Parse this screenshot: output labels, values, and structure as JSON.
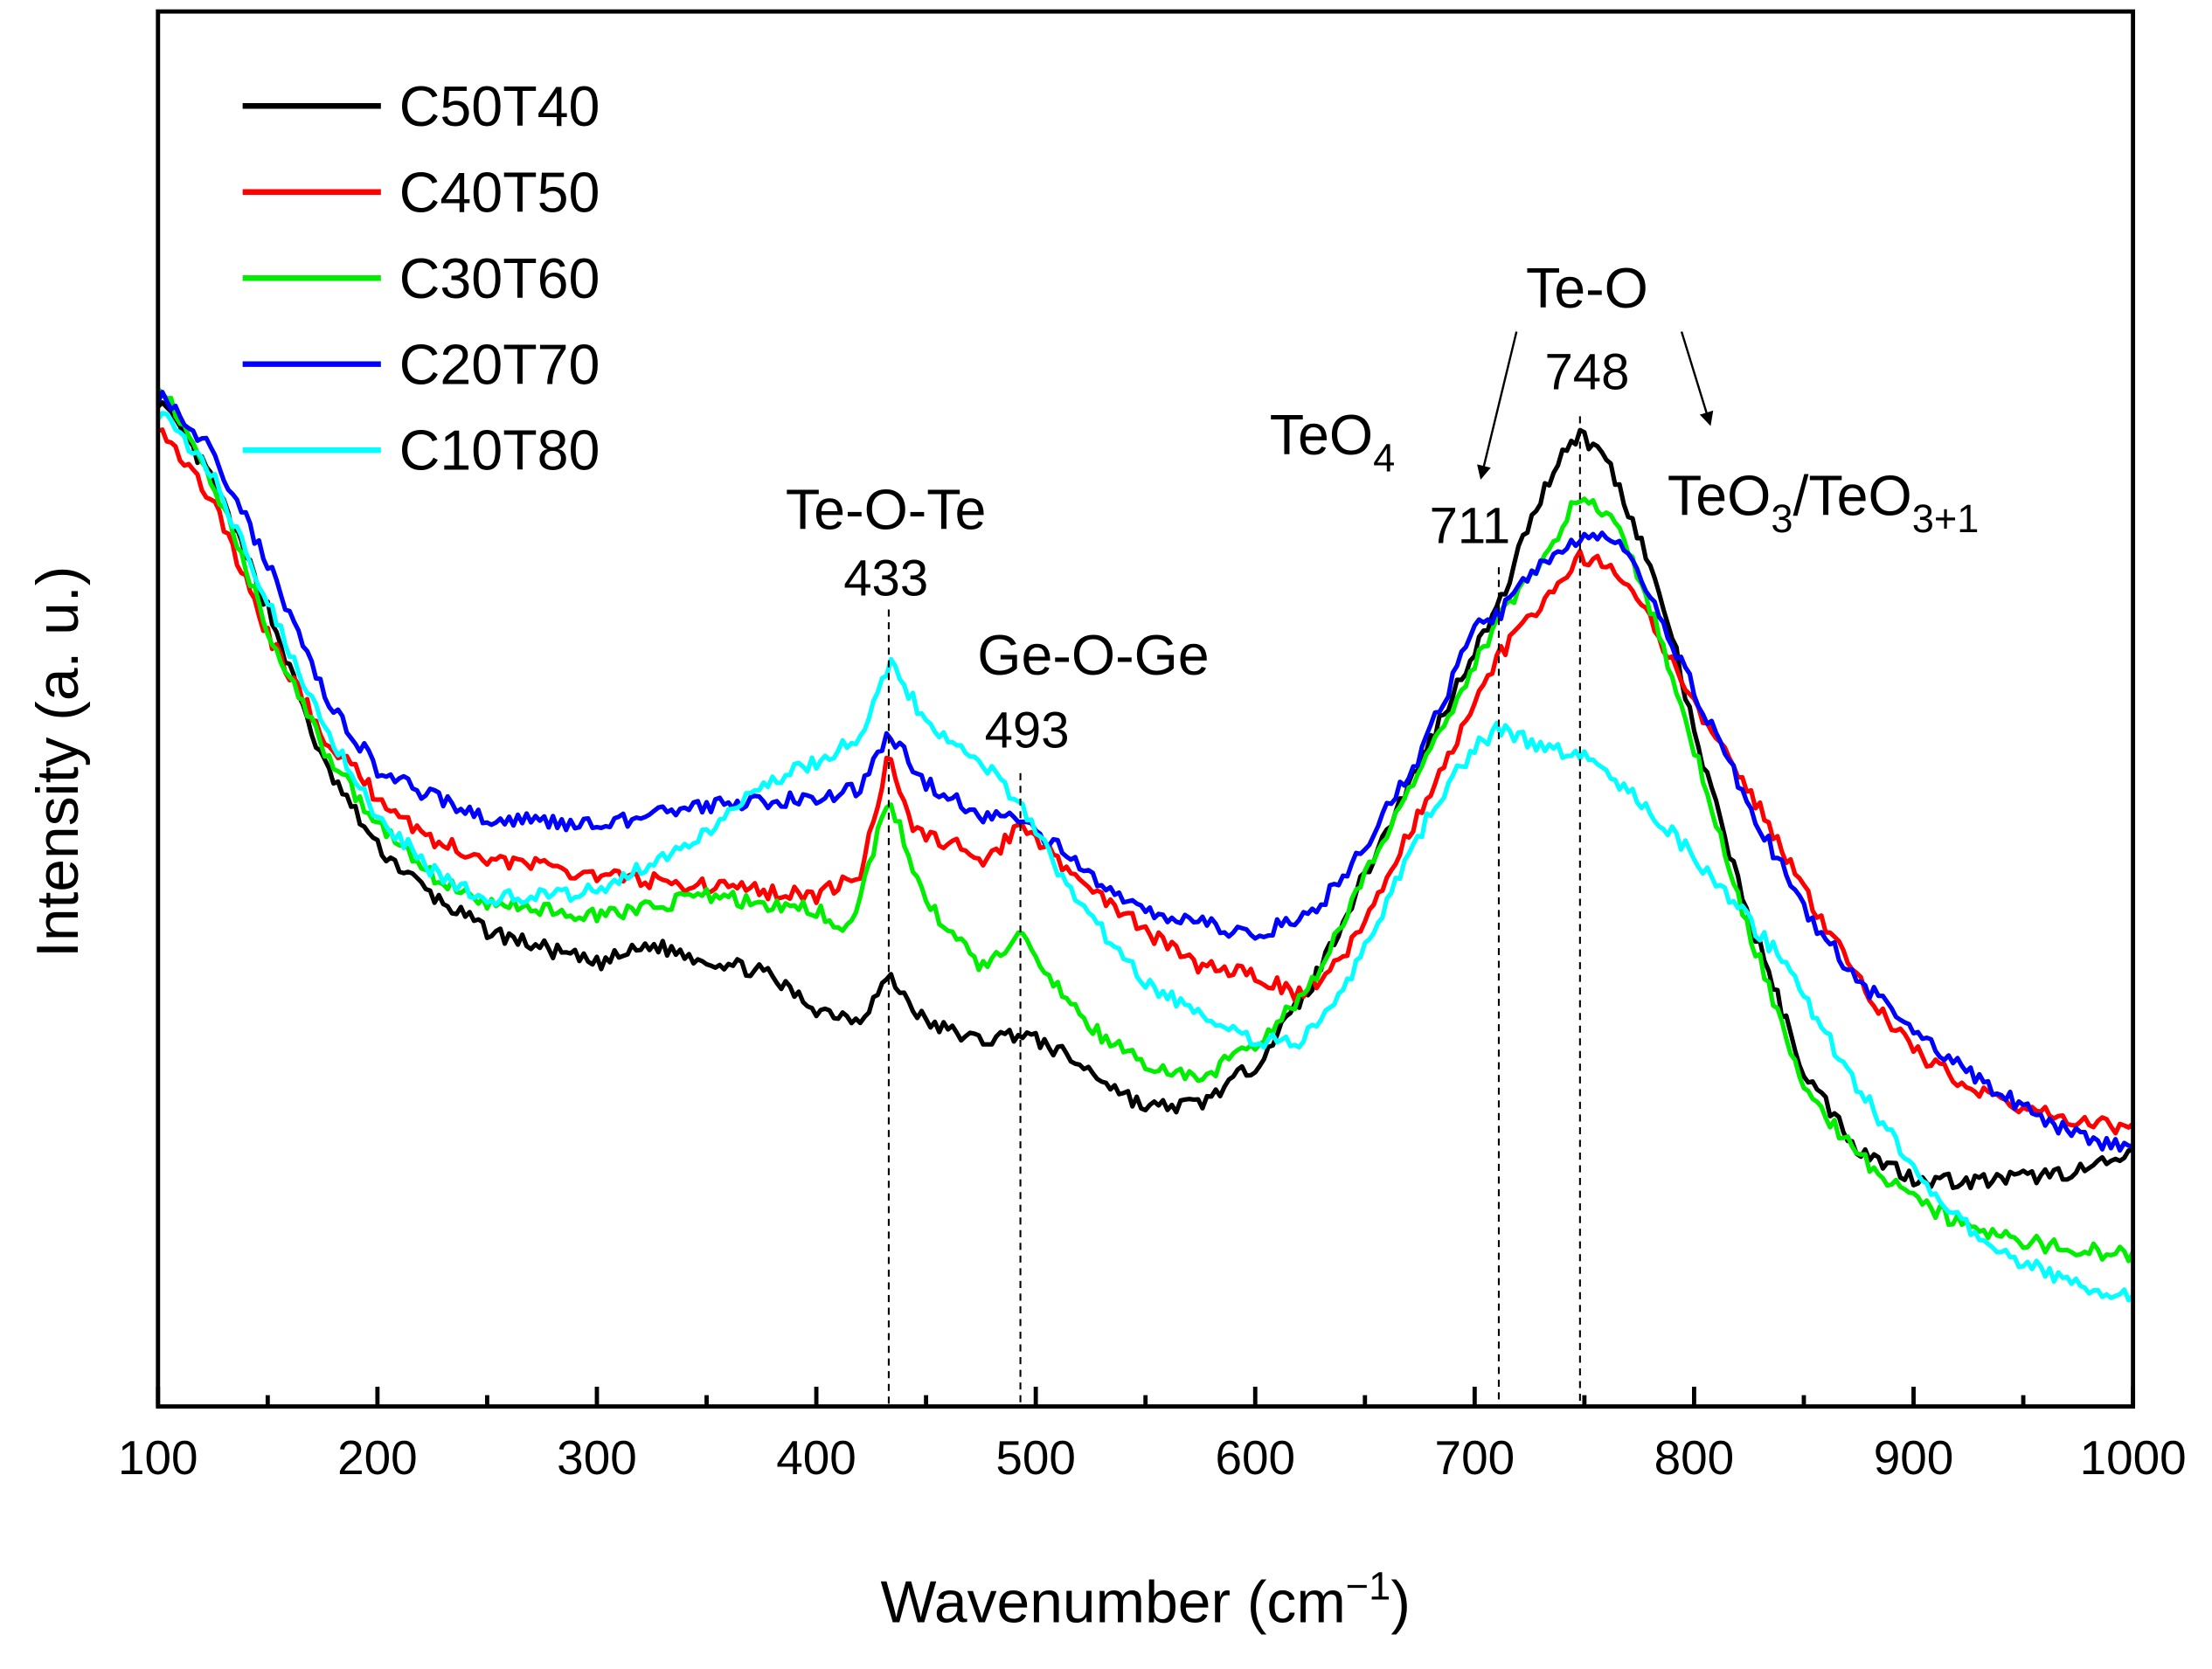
{
  "chart_data": {
    "type": "line",
    "title": "",
    "xlabel": "Wavenumber (cm",
    "xlabel_sup": "−1",
    "xlabel_close": ")",
    "ylabel": "Intensity (a. u.)",
    "xlim": [
      100,
      1000
    ],
    "ylim": [
      0,
      100
    ],
    "xticks": [
      "100",
      "200",
      "300",
      "400",
      "500",
      "600",
      "700",
      "800",
      "900",
      "1000"
    ],
    "grid": false,
    "legend_position": "top-left",
    "series": [
      {
        "name": "C50T40",
        "color": "#000000",
        "x": [
          100,
          125,
          150,
          175,
          200,
          225,
          250,
          300,
          325,
          350,
          375,
          400,
          420,
          433,
          450,
          475,
          493,
          510,
          530,
          550,
          575,
          600,
          625,
          650,
          675,
          700,
          711,
          725,
          740,
          748,
          760,
          775,
          790,
          800,
          825,
          850,
          875,
          900,
          925,
          950,
          975,
          1000
        ],
        "y": [
          72.2,
          66.4,
          57.3,
          46.2,
          40.1,
          36.6,
          34.1,
          31.7,
          33.1,
          32,
          31.2,
          28.5,
          27.8,
          30.8,
          27.5,
          26.2,
          26.8,
          25.5,
          23.5,
          21.4,
          21.7,
          24.5,
          30,
          38.1,
          46.2,
          54.3,
          57.3,
          63.4,
          68.5,
          69.7,
          68,
          62.4,
          55.3,
          48.2,
          35.1,
          24,
          18.4,
          16.4,
          16.1,
          16.4,
          16.9,
          17.9
        ]
      },
      {
        "name": "C40T50",
        "color": "#ff0000",
        "x": [
          100,
          125,
          150,
          175,
          200,
          225,
          250,
          300,
          350,
          400,
          420,
          433,
          445,
          465,
          475,
          493,
          510,
          530,
          550,
          575,
          600,
          620,
          640,
          660,
          680,
          700,
          711,
          730,
          748,
          765,
          780,
          800,
          825,
          850,
          875,
          900,
          925,
          950,
          975,
          1000
        ],
        "y": [
          70.5,
          64.9,
          55.3,
          48.2,
          43.7,
          40.6,
          39.3,
          38.1,
          37.3,
          36.6,
          38.1,
          46.7,
          41.2,
          40.1,
          38.6,
          41.7,
          39.1,
          36.6,
          34.1,
          31.5,
          31,
          29.5,
          32,
          38.1,
          44.2,
          50.3,
          53.8,
          57.3,
          60.9,
          59.9,
          56.3,
          50.3,
          44.2,
          37.1,
          30.5,
          25.5,
          23,
          21.4,
          20.4,
          19.9
        ]
      },
      {
        "name": "C30T60",
        "color": "#00ee00",
        "x": [
          100,
          125,
          150,
          175,
          200,
          225,
          250,
          300,
          350,
          400,
          415,
          433,
          450,
          475,
          493,
          510,
          530,
          550,
          575,
          600,
          625,
          650,
          675,
          700,
          711,
          730,
          748,
          765,
          780,
          800,
          825,
          850,
          875,
          900,
          925,
          950,
          975,
          1000
        ],
        "y": [
          73.5,
          66.4,
          55.8,
          47.2,
          41.7,
          38.1,
          36.1,
          35.1,
          36.6,
          35.6,
          34.1,
          43.7,
          36.1,
          31.5,
          33.6,
          30,
          26.5,
          24.5,
          23.5,
          26,
          30,
          38.1,
          45.7,
          53.3,
          56.3,
          60.4,
          65.4,
          63.4,
          57.3,
          47.2,
          34.1,
          23,
          17.9,
          14.9,
          12.8,
          11.8,
          11.3,
          10.8
        ]
      },
      {
        "name": "C20T70",
        "color": "#0000ff",
        "x": [
          100,
          125,
          150,
          175,
          200,
          225,
          250,
          300,
          350,
          400,
          420,
          433,
          450,
          475,
          493,
          510,
          530,
          550,
          575,
          600,
          625,
          650,
          675,
          700,
          711,
          730,
          748,
          765,
          780,
          800,
          825,
          850,
          875,
          900,
          925,
          950,
          975,
          1000
        ],
        "y": [
          72.5,
          68.5,
          60.4,
          51.3,
          45.7,
          43.7,
          42.2,
          41.7,
          43,
          43.7,
          44.2,
          48.4,
          44.7,
          42.4,
          42.2,
          40.1,
          37.3,
          35.3,
          34.6,
          33.9,
          35.1,
          40.1,
          46.7,
          55.8,
          56.8,
          60.4,
          62.4,
          61.9,
          58.3,
          51.3,
          43.2,
          35.6,
          30.5,
          27,
          24,
          21.4,
          19.4,
          18.4
        ]
      },
      {
        "name": "C10T80",
        "color": "#00ffff",
        "x": [
          100,
          125,
          150,
          175,
          200,
          225,
          250,
          300,
          350,
          375,
          400,
          420,
          433,
          450,
          475,
          493,
          510,
          530,
          550,
          575,
          600,
          620,
          640,
          660,
          680,
          700,
          711,
          730,
          748,
          765,
          790,
          810,
          840,
          870,
          900,
          925,
          950,
          975,
          1000
        ],
        "y": [
          71.3,
          66.8,
          57.7,
          49.1,
          42.4,
          38.4,
          36.4,
          36.9,
          41.2,
          44.7,
          46.2,
          48.2,
          53.3,
          49.2,
          46.2,
          43.2,
          38.6,
          34.1,
          30.5,
          28,
          26.2,
          26,
          29.5,
          36.1,
          42.7,
          47.2,
          48.7,
          47.2,
          46.7,
          44.7,
          41.2,
          37.5,
          32.1,
          24,
          17.1,
          12.8,
          10.3,
          8.8,
          7.8
        ]
      }
    ],
    "annotations": [
      {
        "label": "Te-O-Te",
        "value": "433",
        "x": 433
      },
      {
        "label": "Ge-O-Ge",
        "value": "493",
        "x": 493
      },
      {
        "label": "TeO",
        "sub": "4",
        "value": "711",
        "x": 711
      },
      {
        "label": "Te-O",
        "value": "748",
        "x": 748
      },
      {
        "label": "TeO",
        "sub": "3",
        "label2": "/TeO",
        "sub2": "3+1"
      }
    ]
  }
}
